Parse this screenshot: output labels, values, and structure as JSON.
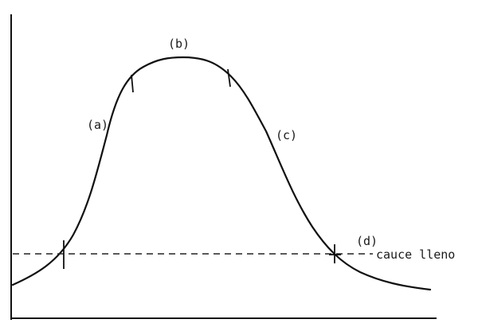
{
  "diagram": {
    "labels": {
      "a": "(a)",
      "b": "(b)",
      "c": "(c)",
      "d": "(d)",
      "channel_line": "cauce lleno"
    },
    "colors": {
      "ink": "#111111",
      "background": "#ffffff"
    }
  }
}
